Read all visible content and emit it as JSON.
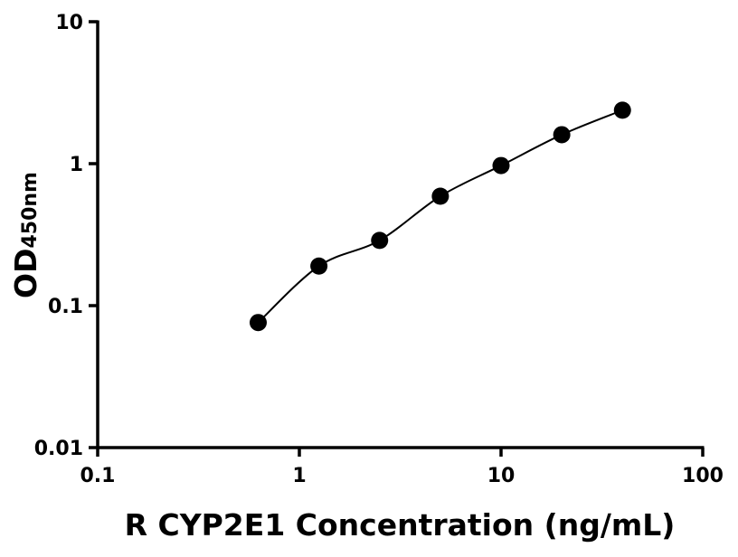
{
  "chart_data": {
    "type": "scatter",
    "title": "",
    "xlabel": "R CYP2E1 Concentration (ng/mL)",
    "ylabel": "OD",
    "ylabel_subscript": "450nm",
    "xscale": "log",
    "yscale": "log",
    "xlim": [
      0.1,
      100
    ],
    "ylim": [
      0.01,
      10
    ],
    "xticks": [
      "0.1",
      "1",
      "10",
      "100"
    ],
    "yticks": [
      "0.01",
      "0.1",
      "1",
      "10"
    ],
    "grid": false,
    "fit_line": true,
    "series": [
      {
        "x": [
          0.625,
          1.25,
          2.5,
          5,
          10,
          20,
          40
        ],
        "y": [
          0.076,
          0.19,
          0.288,
          0.59,
          0.97,
          1.6,
          2.38
        ]
      }
    ],
    "colors": {
      "points": "#000000",
      "line": "#000000"
    }
  }
}
